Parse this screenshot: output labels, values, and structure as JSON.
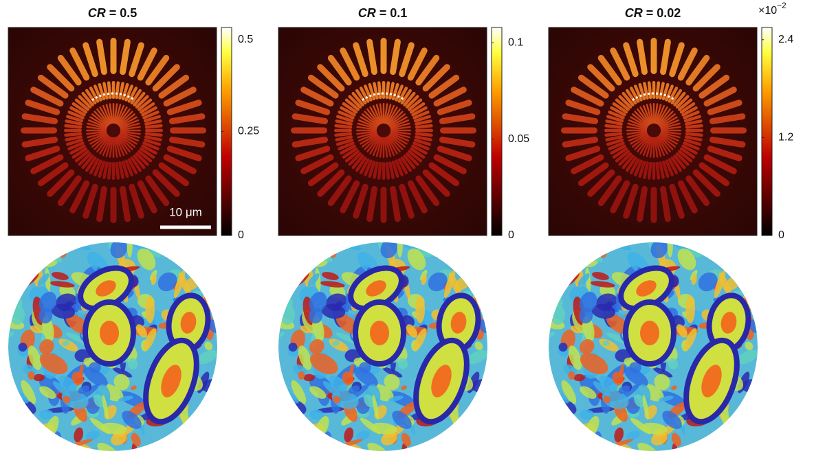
{
  "panels": [
    {
      "title": {
        "variable": "CR",
        "rest": " = 0.5"
      },
      "colorbar": {
        "clim": [
          0,
          0.5
        ],
        "ticks": [
          0,
          0.25,
          0.5
        ]
      },
      "scale_bar": "10 μm"
    },
    {
      "title": {
        "variable": "CR",
        "rest": " = 0.1"
      },
      "colorbar": {
        "clim": [
          0,
          0.108
        ],
        "ticks": [
          0,
          0.05,
          0.1
        ]
      }
    },
    {
      "title": {
        "variable": "CR",
        "rest": " = 0.02"
      },
      "colorbar": {
        "clim": [
          0,
          2.55
        ],
        "ticks": [
          0,
          1.2,
          2.4
        ],
        "multiplier": {
          "base": "×10",
          "exponent": "−2"
        }
      }
    }
  ]
}
